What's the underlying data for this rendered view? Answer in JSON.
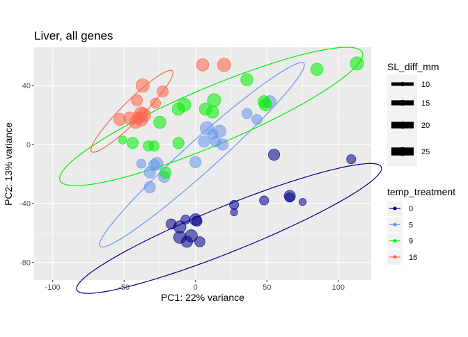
{
  "chart_data": {
    "type": "scatter",
    "title": "Liver, all genes",
    "xlabel": "PC1: 22% variance",
    "ylabel": "PC2: 13% variance",
    "xlim": [
      -113,
      123
    ],
    "ylim": [
      -92,
      66
    ],
    "x_ticks": [
      -100,
      -50,
      0,
      50,
      100
    ],
    "y_ticks": [
      -80,
      -40,
      0,
      40
    ],
    "grid": true,
    "legend_placement": "right",
    "size_legend": {
      "title": "SL_diff_mm",
      "values": [
        10,
        15,
        20,
        25
      ]
    },
    "color_legend": {
      "title": "temp_treatment"
    },
    "series": [
      {
        "name": "0",
        "color": "#00008B",
        "points": [
          {
            "x": 109,
            "y": -10,
            "s": 12
          },
          {
            "x": 55,
            "y": -7,
            "s": 16
          },
          {
            "x": 66,
            "y": -35,
            "s": 16
          },
          {
            "x": 66,
            "y": -36,
            "s": 12
          },
          {
            "x": 48,
            "y": -38,
            "s": 12
          },
          {
            "x": 75,
            "y": -39,
            "s": 8
          },
          {
            "x": 27,
            "y": -41,
            "s": 12
          },
          {
            "x": 27,
            "y": -46,
            "s": 8
          },
          {
            "x": -17,
            "y": -54,
            "s": 14
          },
          {
            "x": -11,
            "y": -56,
            "s": 18
          },
          {
            "x": -7,
            "y": -51,
            "s": 12
          },
          {
            "x": 0,
            "y": -51,
            "s": 17
          },
          {
            "x": 1,
            "y": -52,
            "s": 14
          },
          {
            "x": -11,
            "y": -63,
            "s": 18
          },
          {
            "x": -6,
            "y": -66,
            "s": 16
          },
          {
            "x": -3,
            "y": -62,
            "s": 18
          },
          {
            "x": 3,
            "y": -66,
            "s": 14
          }
        ]
      },
      {
        "name": "5",
        "color": "#6495ED",
        "points": [
          {
            "x": 52,
            "y": 29,
            "s": 18
          },
          {
            "x": 36,
            "y": 21,
            "s": 14
          },
          {
            "x": 43,
            "y": 17,
            "s": 14
          },
          {
            "x": 8,
            "y": 11,
            "s": 20
          },
          {
            "x": 17,
            "y": 9,
            "s": 18
          },
          {
            "x": 12,
            "y": 7,
            "s": 14
          },
          {
            "x": 6,
            "y": 2,
            "s": 16
          },
          {
            "x": 14,
            "y": 2,
            "s": 14
          },
          {
            "x": 19,
            "y": 0,
            "s": 16
          },
          {
            "x": -38,
            "y": -13,
            "s": 12
          },
          {
            "x": -27,
            "y": -13,
            "s": 18
          },
          {
            "x": -29,
            "y": -14,
            "s": 16
          },
          {
            "x": 0,
            "y": -12,
            "s": 16
          },
          {
            "x": -32,
            "y": -19,
            "s": 16
          },
          {
            "x": -22,
            "y": -22,
            "s": 16
          },
          {
            "x": -32,
            "y": -29,
            "s": 16
          }
        ]
      },
      {
        "name": "9",
        "color": "#00EE00",
        "points": [
          {
            "x": 113,
            "y": 55,
            "s": 20
          },
          {
            "x": 85,
            "y": 51,
            "s": 18
          },
          {
            "x": 36,
            "y": 44,
            "s": 18
          },
          {
            "x": 48,
            "y": 29,
            "s": 18
          },
          {
            "x": 49,
            "y": 27,
            "s": 18
          },
          {
            "x": 13,
            "y": 30,
            "s": 20
          },
          {
            "x": 12,
            "y": 22,
            "s": 18
          },
          {
            "x": 7,
            "y": 24,
            "s": 18
          },
          {
            "x": -8,
            "y": 27,
            "s": 20
          },
          {
            "x": -12,
            "y": 24,
            "s": 18
          },
          {
            "x": -25,
            "y": 15,
            "s": 18
          },
          {
            "x": -51,
            "y": 3,
            "s": 10
          },
          {
            "x": -44,
            "y": 1,
            "s": 16
          },
          {
            "x": -33,
            "y": -1,
            "s": 14
          },
          {
            "x": -29,
            "y": -1,
            "s": 14
          },
          {
            "x": -12,
            "y": 1,
            "s": 16
          },
          {
            "x": -21,
            "y": -19,
            "s": 16
          }
        ]
      },
      {
        "name": "16",
        "color": "#FF6347",
        "points": [
          {
            "x": 5,
            "y": 54,
            "s": 18
          },
          {
            "x": 20,
            "y": 54,
            "s": 20
          },
          {
            "x": -37,
            "y": 40,
            "s": 20
          },
          {
            "x": -23,
            "y": 36,
            "s": 16
          },
          {
            "x": -41,
            "y": 30,
            "s": 16
          },
          {
            "x": -28,
            "y": 28,
            "s": 14
          },
          {
            "x": -38,
            "y": 21,
            "s": 20
          },
          {
            "x": -36,
            "y": 20,
            "s": 20
          },
          {
            "x": -40,
            "y": 18,
            "s": 18
          },
          {
            "x": -42,
            "y": 15,
            "s": 18
          },
          {
            "x": -46,
            "y": 18,
            "s": 18
          },
          {
            "x": -53,
            "y": 17,
            "s": 18
          },
          {
            "x": -38,
            "y": 17,
            "s": 20
          }
        ]
      }
    ],
    "ellipses": [
      {
        "series": "0",
        "cx": 23.5,
        "cy": -57,
        "rx": 115,
        "ry": 16,
        "angle": 22
      },
      {
        "series": "5",
        "cx": 4.5,
        "cy": -7,
        "rx": 96,
        "ry": 11,
        "angle": 42
      },
      {
        "series": "9",
        "cx": 11,
        "cy": 19,
        "rx": 115,
        "ry": 20,
        "angle": 23
      },
      {
        "series": "16",
        "cx": -44.5,
        "cy": 22.5,
        "rx": 40,
        "ry": 7,
        "angle": 45
      }
    ]
  }
}
